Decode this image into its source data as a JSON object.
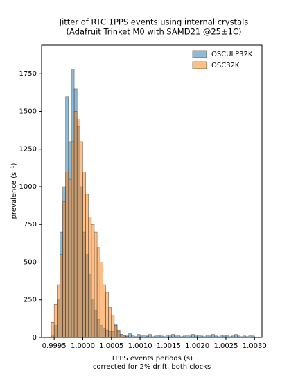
{
  "chart_data": {
    "type": "histogram",
    "title": [
      "Jitter of RTC 1PPS events using internal crystals",
      "(Adafruit Trinket M0 with SAMD21 @25±1C)"
    ],
    "xlabel": [
      "1PPS events periods (s)",
      "corrected for 2% drift, both clocks"
    ],
    "ylabel": "prevalence (s⁻¹)",
    "bins": [
      0.99945,
      0.9995,
      0.99955,
      0.9996,
      0.99965,
      0.9997,
      0.99975,
      0.9998,
      0.99985,
      0.9999,
      0.99995,
      1.0,
      1.00005,
      1.0001,
      1.00015,
      1.0002,
      1.00025,
      1.0003,
      1.00035,
      1.0004,
      1.00045,
      1.0005,
      1.00055,
      1.0006,
      1.00065,
      1.0007,
      1.00075,
      1.0008,
      1.00085,
      1.0009,
      1.00095,
      1.001,
      1.00105,
      1.0011,
      1.00115,
      1.0012,
      1.00125,
      1.0013,
      1.00135,
      1.0014,
      1.00145,
      1.0015,
      1.00155,
      1.0016,
      1.00165,
      1.0017,
      1.00175,
      1.0018,
      1.00185,
      1.0019,
      1.00195,
      1.002,
      1.00205,
      1.0021,
      1.00215,
      1.0022,
      1.00225,
      1.0023,
      1.00235,
      1.0024,
      1.00245,
      1.0025,
      1.00255,
      1.0026,
      1.00265,
      1.0027,
      1.00275,
      1.0028,
      1.00285,
      1.0029,
      1.00295,
      1.003
    ],
    "series": [
      {
        "name": "OSCULP32K",
        "color": "#1f77b4",
        "values": [
          10,
          80,
          250,
          700,
          1000,
          1600,
          1300,
          1780,
          1650,
          1400,
          1000,
          700,
          550,
          420,
          250,
          180,
          120,
          80,
          60,
          50,
          40,
          40,
          90,
          40,
          20,
          15,
          10,
          25,
          15,
          5,
          20,
          10,
          15,
          10,
          20,
          5,
          10,
          15,
          10,
          5,
          15,
          10,
          20,
          10,
          15,
          5,
          10,
          15,
          10,
          20,
          10,
          15,
          10,
          5,
          15,
          10,
          20,
          10,
          5,
          15,
          10,
          15,
          5,
          10,
          20,
          10,
          5,
          10,
          5,
          15,
          10
        ]
      },
      {
        "name": "OSC32K",
        "color": "#ff7f0e",
        "values": [
          100,
          220,
          350,
          550,
          900,
          1100,
          1050,
          1300,
          1500,
          1450,
          1300,
          1100,
          950,
          800,
          750,
          700,
          600,
          500,
          350,
          300,
          200,
          150,
          80,
          50,
          20,
          10,
          5,
          0,
          0,
          5,
          0,
          0,
          0,
          5,
          0,
          0,
          0,
          0,
          0,
          0,
          0,
          0,
          0,
          0,
          0,
          0,
          0,
          0,
          0,
          0,
          0,
          0,
          0,
          0,
          0,
          0,
          0,
          0,
          0,
          0,
          0,
          0,
          0,
          0,
          0,
          0,
          0,
          0,
          0,
          0,
          0
        ]
      }
    ],
    "xlim": [
      0.99928,
      1.00313
    ],
    "ylim": [
      0,
      1940
    ],
    "xticks": [
      0.9995,
      {
        "value": 1.0,
        "label": "1.0000"
      },
      1.0005,
      {
        "value": 1.001,
        "label": "1.0010"
      },
      1.0015,
      {
        "value": 1.002,
        "label": "1.0020"
      },
      1.0025,
      {
        "value": 1.003,
        "label": "1.0030"
      }
    ],
    "yticks": [
      0,
      250,
      500,
      750,
      1000,
      1250,
      1500,
      1750
    ],
    "legend": "upper right"
  }
}
